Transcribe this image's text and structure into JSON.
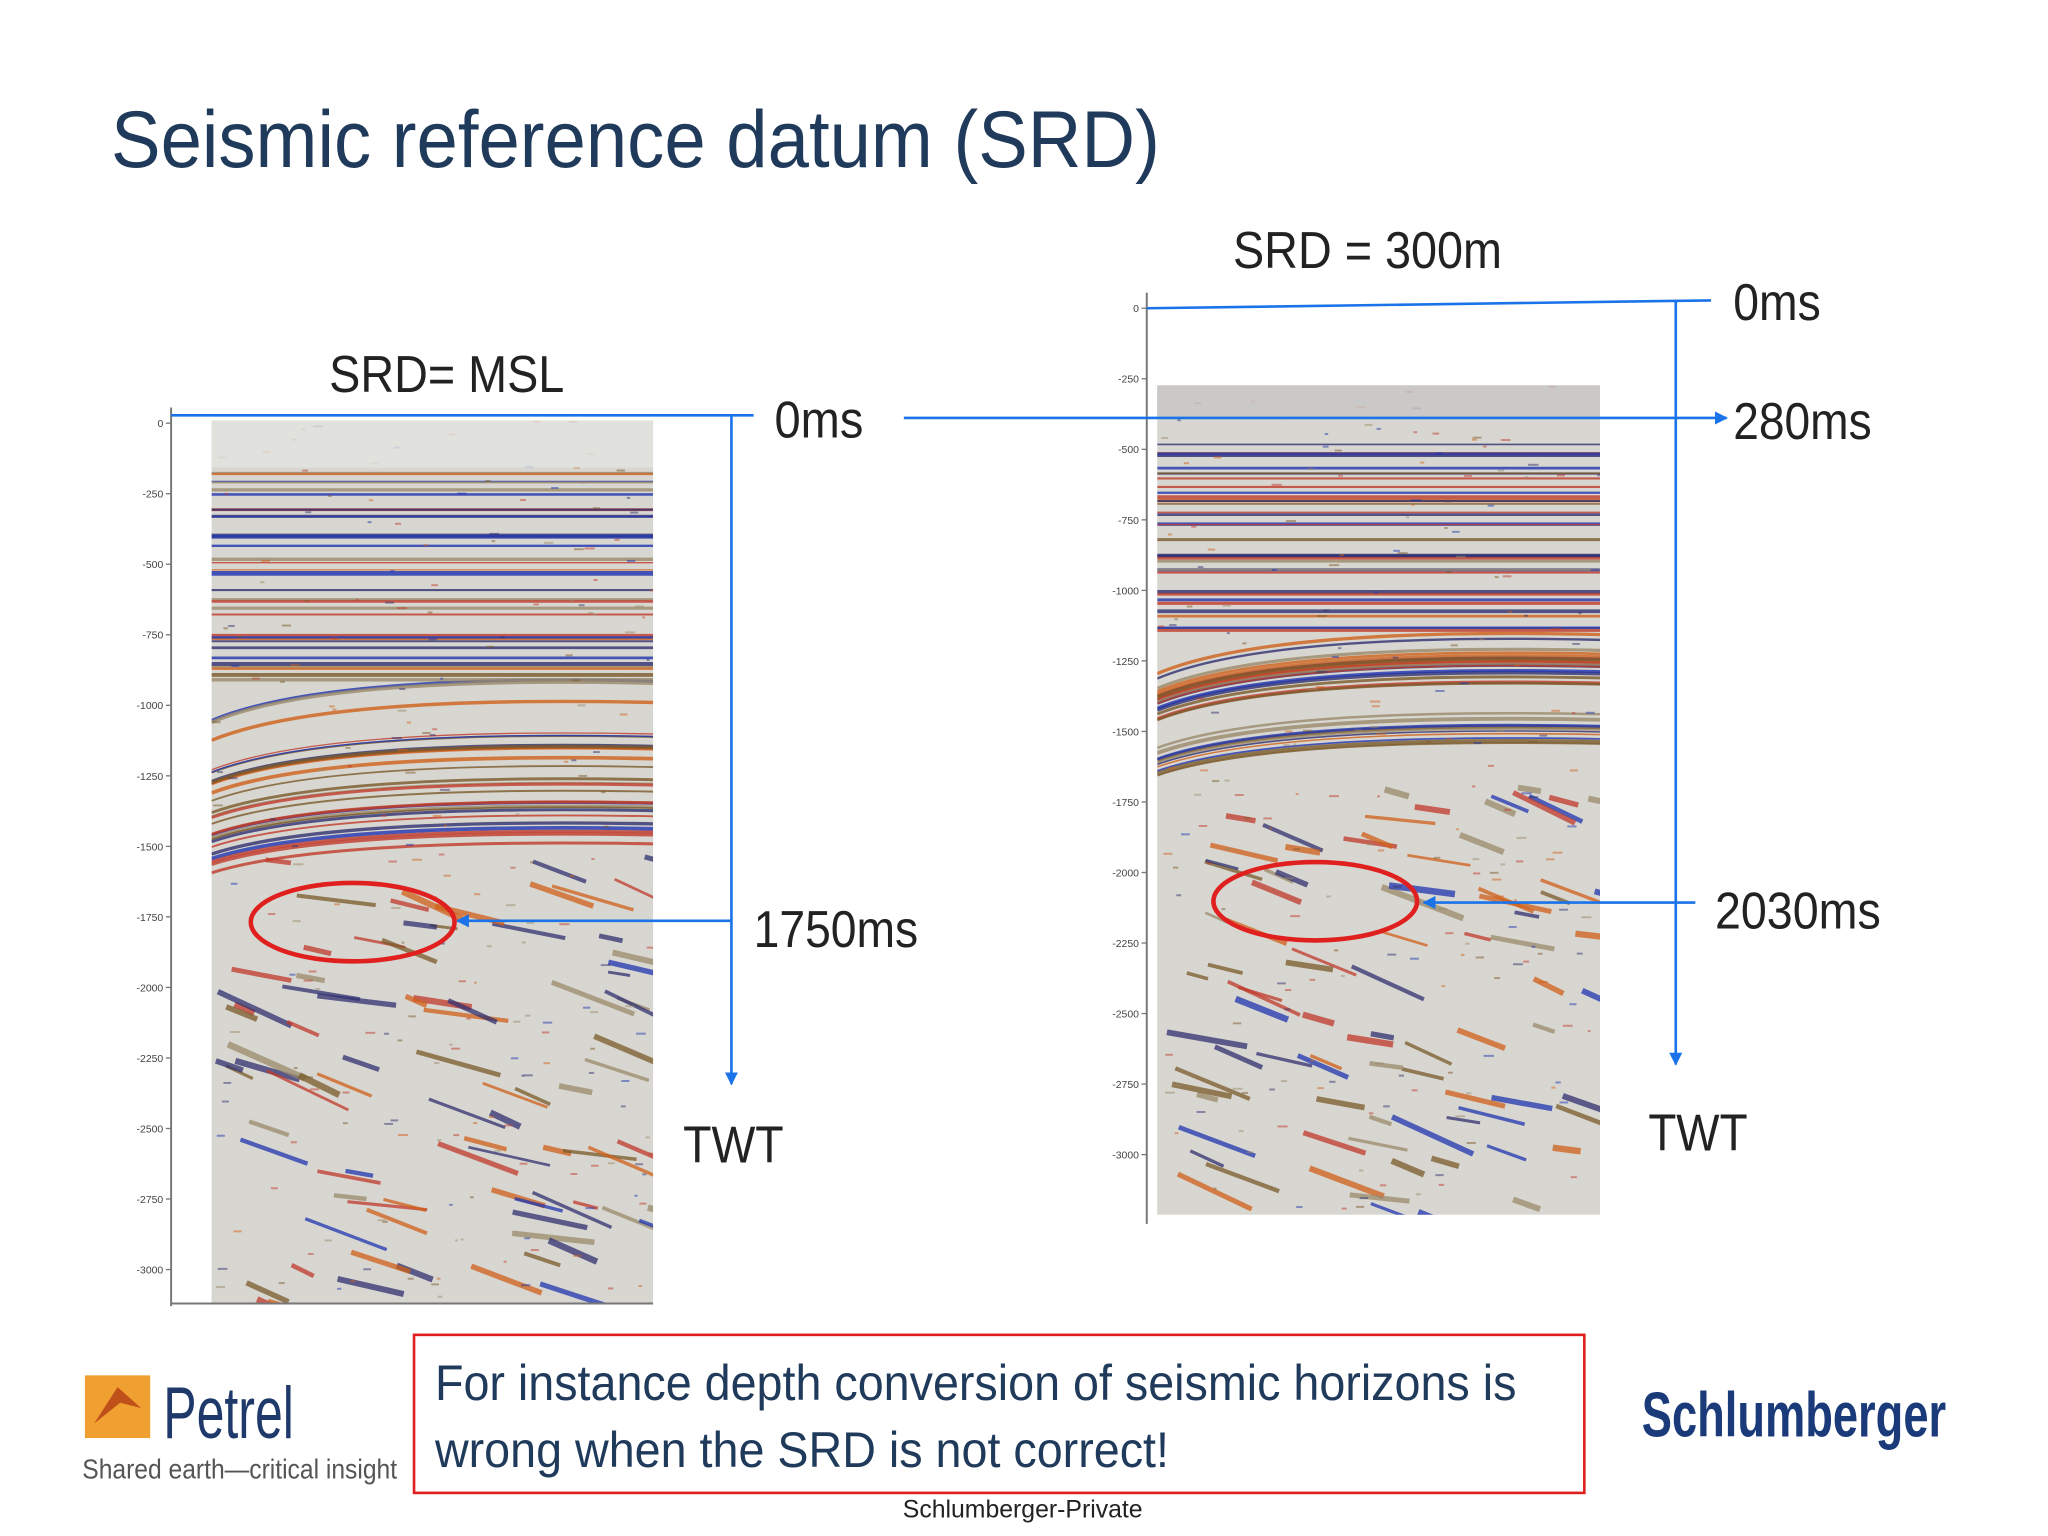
{
  "title": "Seismic reference datum (SRD)",
  "panels": [
    {
      "label": "SRD= MSL",
      "axis_ticks": [
        "0",
        "-250",
        "-500",
        "-750",
        "-1000",
        "-1250",
        "-1500",
        "-1750",
        "-2000",
        "-2250",
        "-2500",
        "-2750",
        "-3000"
      ],
      "zero_label": "0ms",
      "pick_label": "1750ms",
      "axis_label": "TWT"
    },
    {
      "label": "SRD = 300m",
      "axis_ticks": [
        "0",
        "-250",
        "-500",
        "-750",
        "-1000",
        "-1250",
        "-1500",
        "-1750",
        "-2000",
        "-2250",
        "-2500",
        "-2750",
        "-3000"
      ],
      "zero_label": "0ms",
      "srd_label": "280ms",
      "pick_label": "2030ms",
      "axis_label": "TWT"
    }
  ],
  "note": {
    "lines": [
      "For instance depth conversion of seismic horizons is",
      "wrong when the SRD is not correct!"
    ]
  },
  "footer": {
    "product": "Petrel",
    "tagline": "Shared earth—critical insight",
    "company": "Schlumberger",
    "classification": "Schlumberger-Private"
  }
}
